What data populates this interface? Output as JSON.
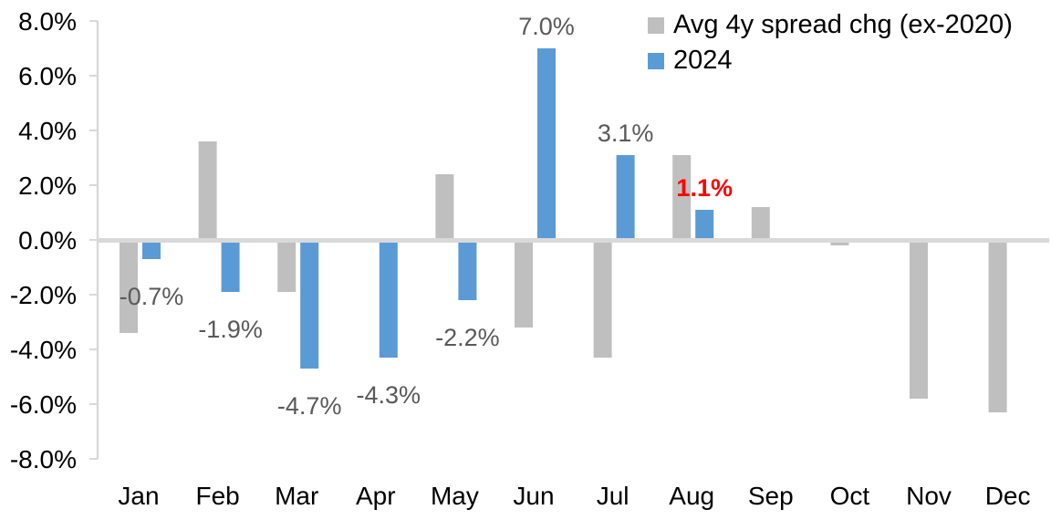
{
  "chart_data": {
    "type": "bar",
    "title": "",
    "categories": [
      "Jan",
      "Feb",
      "Mar",
      "Apr",
      "May",
      "Jun",
      "Jul",
      "Aug",
      "Sep",
      "Oct",
      "Nov",
      "Dec"
    ],
    "series": [
      {
        "name": "Avg 4y spread chg (ex-2020)",
        "color": "#BFBFBF",
        "values": [
          -3.4,
          3.6,
          -1.9,
          0.0,
          2.4,
          -3.2,
          -4.3,
          3.1,
          1.2,
          -0.2,
          -5.8,
          -6.3
        ]
      },
      {
        "name": "2024",
        "color": "#5B9BD5",
        "values": [
          -0.7,
          -1.9,
          -4.7,
          -4.3,
          -2.2,
          7.0,
          3.1,
          1.1,
          null,
          null,
          null,
          null
        ]
      }
    ],
    "data_labels": [
      {
        "month": "Jan",
        "text": "-0.7%",
        "color": "#595959",
        "bold": false
      },
      {
        "month": "Feb",
        "text": "-1.9%",
        "color": "#595959",
        "bold": false
      },
      {
        "month": "Mar",
        "text": "-4.7%",
        "color": "#595959",
        "bold": false
      },
      {
        "month": "Apr",
        "text": "-4.3%",
        "color": "#595959",
        "bold": false
      },
      {
        "month": "May",
        "text": "-2.2%",
        "color": "#595959",
        "bold": false
      },
      {
        "month": "Jun",
        "text": "7.0%",
        "color": "#595959",
        "bold": false
      },
      {
        "month": "Jul",
        "text": "3.1%",
        "color": "#595959",
        "bold": false
      },
      {
        "month": "Aug",
        "text": "1.1%",
        "color": "#FF0000",
        "bold": true
      }
    ],
    "y_axis": {
      "min": -8,
      "max": 8,
      "step": 2,
      "tick_labels": [
        "8.0%",
        "6.0%",
        "4.0%",
        "2.0%",
        "0.0%",
        "-2.0%",
        "-4.0%",
        "-6.0%",
        "-8.0%"
      ]
    },
    "legend": {
      "position": "top-right",
      "entries": [
        "Avg 4y spread chg (ex-2020)",
        "2024"
      ]
    },
    "grid": false,
    "colors": {
      "axis_line": "#D9D9D9",
      "axis_text": "#000000",
      "label_text": "#595959",
      "highlight": "#FF0000",
      "background": "#FFFFFF"
    }
  }
}
